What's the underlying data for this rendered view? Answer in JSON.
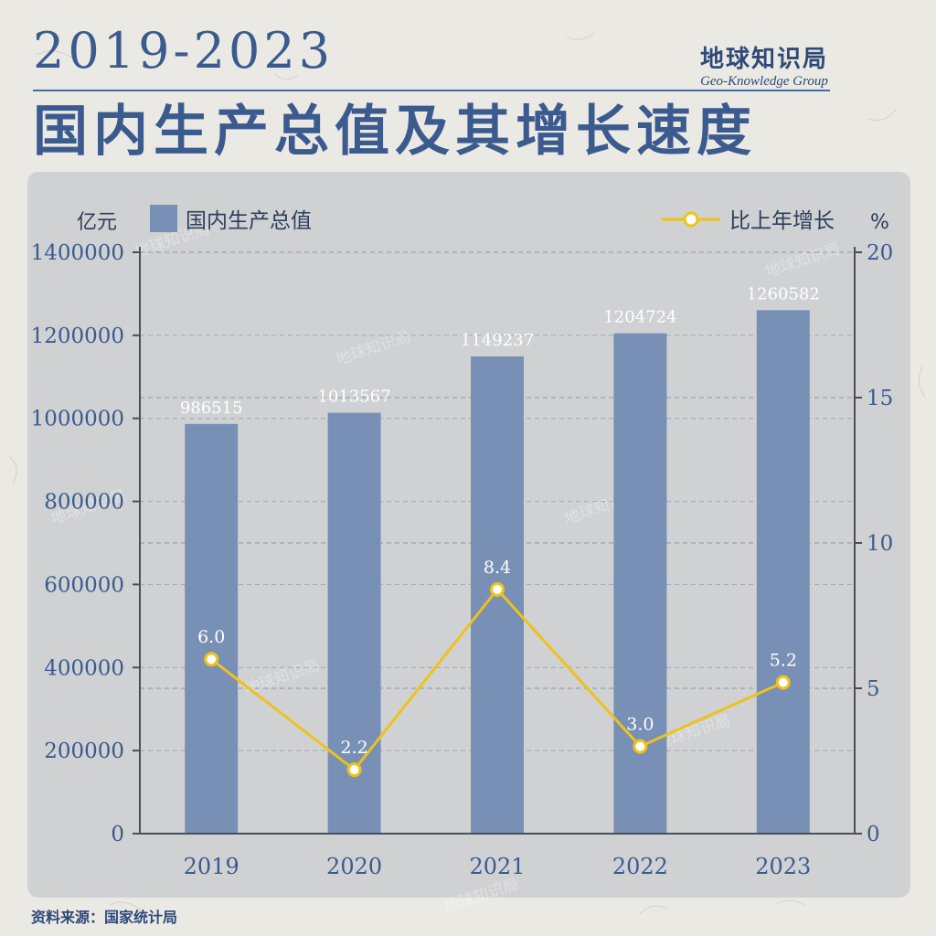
{
  "header": {
    "years": "2019-2023",
    "title": "国内生产总值及其增长速度",
    "brand_cn": "地球知识局",
    "brand_en": "Geo-Knowledge Group"
  },
  "source": "资料来源：国家统计局",
  "watermark": "地球知识局",
  "colors": {
    "bar": "#7890b6",
    "line": "#efc21a",
    "text": "#3b5b8f",
    "panel": "#cfd1d3"
  },
  "chart_data": {
    "type": "bar",
    "categories": [
      "2019",
      "2020",
      "2021",
      "2022",
      "2023"
    ],
    "series": [
      {
        "name": "国内生产总值",
        "type": "bar",
        "axis": "left",
        "values": [
          986515,
          1013567,
          1149237,
          1204724,
          1260582
        ]
      },
      {
        "name": "比上年增长",
        "type": "line",
        "axis": "right",
        "values": [
          6.0,
          2.2,
          8.4,
          3.0,
          5.2
        ]
      }
    ],
    "value_labels": {
      "bar": [
        "986515",
        "1013567",
        "1149237",
        "1204724",
        "1260582"
      ],
      "line": [
        "6.0",
        "2.2",
        "8.4",
        "3.0",
        "5.2"
      ]
    },
    "y_left": {
      "unit": "亿元",
      "min": 0,
      "max": 1400000,
      "ticks": [
        0,
        200000,
        400000,
        600000,
        800000,
        1000000,
        1200000,
        1400000
      ]
    },
    "y_right": {
      "unit": "%",
      "min": 0,
      "max": 20,
      "ticks": [
        0,
        5,
        10,
        15,
        20
      ]
    },
    "grid": true,
    "legend_position": "top"
  }
}
